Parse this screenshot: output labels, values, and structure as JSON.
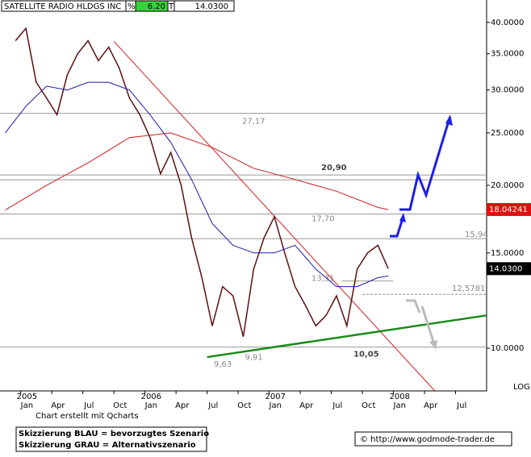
{
  "header": {
    "name": "SATELLITE RADIO HLDGS INC",
    "pct": "%",
    "change": "6.20",
    "t": "T",
    "last": "14.0300"
  },
  "chart_data": {
    "type": "line",
    "log_scale": true,
    "xlim": [
      "2004-11",
      "2008-10"
    ],
    "ylim": [
      8.34,
      44.0
    ],
    "yticks": [
      {
        "value": 40,
        "label": "40.0000"
      },
      {
        "value": 35,
        "label": "35.0000"
      },
      {
        "value": 30,
        "label": "30.0000"
      },
      {
        "value": 25,
        "label": "25.0000"
      },
      {
        "value": 20,
        "label": "20.0000"
      },
      {
        "value": 15,
        "label": "15.0000"
      },
      {
        "value": 10,
        "label": "10.0000"
      }
    ],
    "xticks": [
      {
        "value": "2005-01",
        "label": "Jan"
      },
      {
        "value": "2005-04",
        "label": "Apr"
      },
      {
        "value": "2005-07",
        "label": "Jul"
      },
      {
        "value": "2005-10",
        "label": "Oct"
      },
      {
        "value": "2006-01",
        "label": "Jan"
      },
      {
        "value": "2006-04",
        "label": "Apr"
      },
      {
        "value": "2006-07",
        "label": "Jul"
      },
      {
        "value": "2006-10",
        "label": "Oct"
      },
      {
        "value": "2007-01",
        "label": "Jan"
      },
      {
        "value": "2007-04",
        "label": "Apr"
      },
      {
        "value": "2007-07",
        "label": "Jul"
      },
      {
        "value": "2007-10",
        "label": "Oct"
      },
      {
        "value": "2008-01",
        "label": "Jan"
      },
      {
        "value": "2008-04",
        "label": "Apr"
      },
      {
        "value": "2008-07",
        "label": "Jul"
      }
    ],
    "year_labels": [
      {
        "value": "2005-01",
        "label": "2005"
      },
      {
        "value": "2006-01",
        "label": "2006"
      },
      {
        "value": "2007-01",
        "label": "2007"
      },
      {
        "value": "2008-01",
        "label": "2008"
      }
    ],
    "scale_label": "LOG",
    "series": [
      {
        "name": "Price",
        "color": "#5a1010",
        "x": [
          "2004-12",
          "2005-01",
          "2005-02",
          "2005-03",
          "2005-04",
          "2005-05",
          "2005-06",
          "2005-07",
          "2005-08",
          "2005-09",
          "2005-10",
          "2005-11",
          "2005-12",
          "2006-01",
          "2006-02",
          "2006-03",
          "2006-04",
          "2006-05",
          "2006-06",
          "2006-07",
          "2006-08",
          "2006-09",
          "2006-10",
          "2006-11",
          "2006-12",
          "2007-01",
          "2007-02",
          "2007-03",
          "2007-04",
          "2007-05",
          "2007-06",
          "2007-07",
          "2007-08",
          "2007-09",
          "2007-10",
          "2007-11",
          "2007-12"
        ],
        "values": [
          37,
          39,
          31,
          29,
          27,
          32,
          35,
          37,
          34,
          36,
          33,
          29,
          27,
          24.5,
          21,
          23,
          20,
          16,
          13.5,
          11,
          13,
          12.5,
          10.5,
          14,
          16,
          17.5,
          15,
          13,
          12,
          11,
          11.5,
          12.5,
          11,
          14,
          15,
          15.5,
          14.03
        ],
        "value_labels": [
          null,
          null,
          null,
          null,
          null,
          null,
          null,
          null,
          null,
          null,
          null,
          null,
          null,
          null,
          null,
          null,
          null,
          null,
          null,
          null,
          null,
          null,
          null,
          null,
          null,
          null,
          null,
          null,
          null,
          null,
          null,
          null,
          null,
          null,
          null,
          null,
          "14.0300"
        ],
        "tag_color": "#000000"
      },
      {
        "name": "MA blue",
        "color": "#1a1aa8",
        "x": [
          "2004-11",
          "2005-01",
          "2005-03",
          "2005-05",
          "2005-07",
          "2005-09",
          "2005-11",
          "2006-01",
          "2006-03",
          "2006-05",
          "2006-07",
          "2006-09",
          "2006-11",
          "2007-01",
          "2007-03",
          "2007-05",
          "2007-07",
          "2007-09",
          "2007-11",
          "2007-12"
        ],
        "values": [
          25,
          28,
          30.5,
          30,
          31,
          31,
          30,
          27,
          24,
          20.5,
          17,
          15.5,
          15,
          15,
          15.5,
          14,
          13,
          13,
          13.5,
          13.6
        ]
      },
      {
        "name": "MA red",
        "color": "#cc1a1a",
        "x": [
          "2004-11",
          "2005-03",
          "2005-07",
          "2005-11",
          "2006-03",
          "2006-07",
          "2006-11",
          "2007-03",
          "2007-07",
          "2007-11",
          "2007-12"
        ],
        "values": [
          18,
          20,
          22,
          24.5,
          25,
          23.5,
          21.5,
          20.5,
          19.5,
          18.2,
          18.04241
        ],
        "value_labels": [
          null,
          null,
          null,
          null,
          null,
          null,
          null,
          null,
          null,
          null,
          "18.04241"
        ],
        "tag_color": "#e01010"
      }
    ],
    "levels": [
      {
        "value": 27.17,
        "label": "27,17"
      },
      {
        "value": 20.9,
        "label": "20,90"
      },
      {
        "value": 17.7,
        "label": "17,70"
      },
      {
        "value": 15.94,
        "label": "15,94"
      },
      {
        "value": 13.31,
        "label": "13,31",
        "x": [
          "2007-08",
          "2008-01"
        ]
      },
      {
        "value": 12.5781,
        "label": "12,5781",
        "x": [
          "2007-10",
          "2008-10"
        ]
      },
      {
        "value": 10.05,
        "label": "10,05"
      }
    ],
    "annotations": [
      {
        "value": 9.63,
        "label": "9,63",
        "x": "2006-07"
      },
      {
        "value": 9.91,
        "label": "9,91",
        "x": "2006-10"
      }
    ],
    "trendlines": [
      {
        "color": "#d02020",
        "x": [
          "2005-10",
          "2008-05"
        ],
        "values": [
          36.9,
          8.34
        ]
      },
      {
        "color": "#1a8a1a",
        "x": [
          "2006-07",
          "2008-10"
        ],
        "values": [
          9.63,
          11.5
        ]
      }
    ]
  },
  "footer": {
    "credit": "Chart erstellt mit Qcharts",
    "legend": [
      "Skizzierung BLAU = bevorzugtes Szenario",
      "Skizzierung GRAU = Alternativszenario"
    ],
    "copyright": "© http://www.godmode-trader.de"
  }
}
